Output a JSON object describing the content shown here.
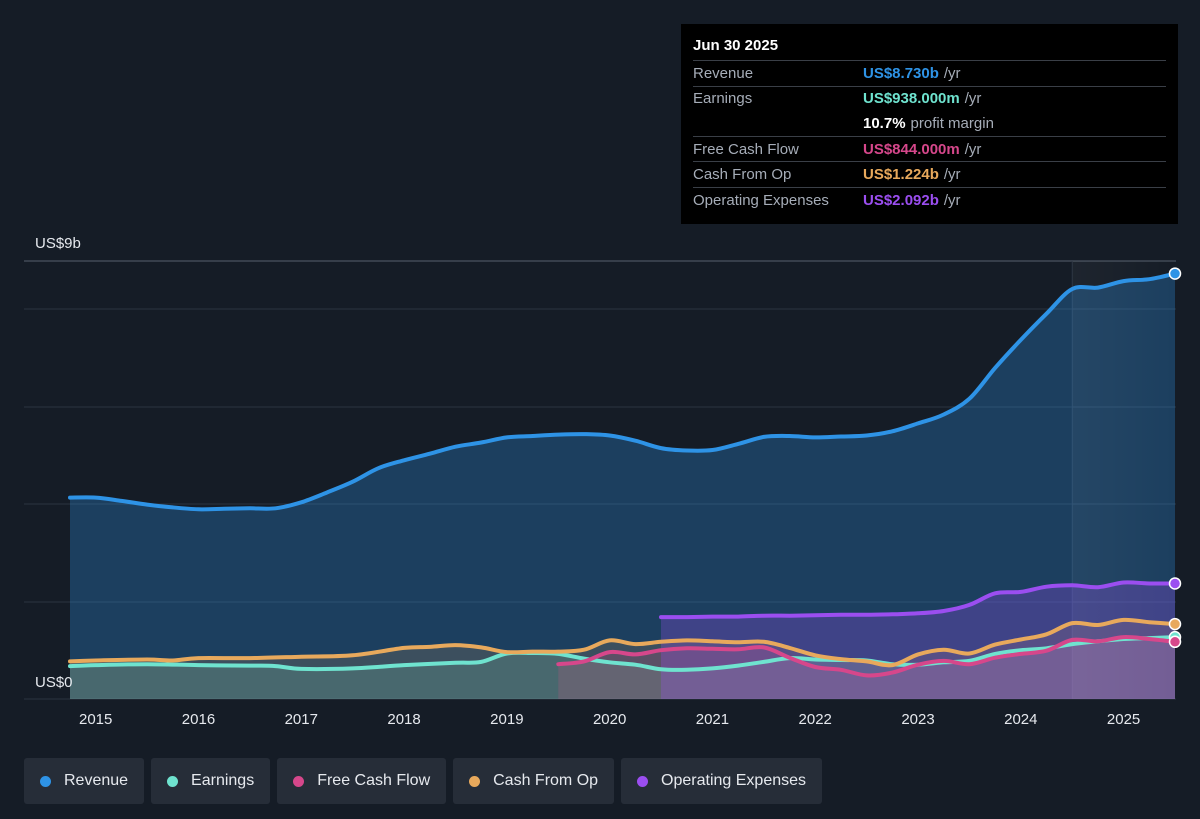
{
  "tooltip": {
    "date": "Jun 30 2025",
    "rows": [
      {
        "label": "Revenue",
        "value": "US$8.730b",
        "unit": "/yr",
        "color": "#2e93e6"
      },
      {
        "label": "Earnings",
        "value": "US$938.000m",
        "unit": "/yr",
        "color": "#6fe3cf"
      },
      {
        "label": "",
        "value": "10.7%",
        "unit": "profit margin",
        "color": "#ffffff"
      },
      {
        "label": "Free Cash Flow",
        "value": "US$844.000m",
        "unit": "/yr",
        "color": "#d6478b"
      },
      {
        "label": "Cash From Op",
        "value": "US$1.224b",
        "unit": "/yr",
        "color": "#e8a95c"
      },
      {
        "label": "Operating Expenses",
        "value": "US$2.092b",
        "unit": "/yr",
        "color": "#9b4ef0"
      }
    ]
  },
  "chart_data": {
    "type": "line",
    "y_top_label": "US$9b",
    "y_zero_label": "US$0",
    "ylim": [
      0,
      9
    ],
    "xlim": [
      2014.75,
      2025.5
    ],
    "x_ticks": [
      "2015",
      "2016",
      "2017",
      "2018",
      "2019",
      "2020",
      "2021",
      "2022",
      "2023",
      "2024",
      "2025"
    ],
    "grid": true,
    "series": [
      {
        "name": "Revenue",
        "color": "#2e93e6",
        "fill": true,
        "x": [
          2014.75,
          2015.0,
          2015.25,
          2015.5,
          2015.75,
          2016.0,
          2016.25,
          2016.5,
          2016.75,
          2017.0,
          2017.25,
          2017.5,
          2017.75,
          2018.0,
          2018.25,
          2018.5,
          2018.75,
          2019.0,
          2019.25,
          2019.5,
          2019.75,
          2020.0,
          2020.25,
          2020.5,
          2020.75,
          2021.0,
          2021.25,
          2021.5,
          2021.75,
          2022.0,
          2022.25,
          2022.5,
          2022.75,
          2023.0,
          2023.25,
          2023.5,
          2023.75,
          2024.0,
          2024.25,
          2024.5,
          2024.75,
          2025.0,
          2025.25,
          2025.5
        ],
        "values": [
          3.93,
          3.93,
          3.86,
          3.78,
          3.72,
          3.68,
          3.69,
          3.7,
          3.7,
          3.83,
          4.04,
          4.27,
          4.56,
          4.73,
          4.87,
          5.02,
          5.11,
          5.22,
          5.25,
          5.28,
          5.29,
          5.26,
          5.15,
          4.99,
          4.94,
          4.95,
          5.08,
          5.23,
          5.25,
          5.22,
          5.24,
          5.26,
          5.35,
          5.52,
          5.71,
          6.05,
          6.71,
          7.31,
          7.87,
          8.4,
          8.43,
          8.57,
          8.61,
          8.73
        ]
      },
      {
        "name": "Earnings",
        "color": "#6fe3cf",
        "fill": true,
        "x": [
          2014.75,
          2015.0,
          2015.5,
          2016.0,
          2016.5,
          2016.75,
          2017.0,
          2017.5,
          2018.0,
          2018.5,
          2018.75,
          2019.0,
          2019.25,
          2019.5,
          2019.75,
          2020.0,
          2020.25,
          2020.5,
          2020.75,
          2021.0,
          2021.25,
          2021.5,
          2021.75,
          2022.0,
          2022.25,
          2022.5,
          2022.75,
          2023.0,
          2023.25,
          2023.5,
          2023.75,
          2024.0,
          2024.25,
          2024.5,
          2024.75,
          2025.0,
          2025.25,
          2025.5
        ],
        "values": [
          0.32,
          0.34,
          0.36,
          0.34,
          0.33,
          0.32,
          0.26,
          0.27,
          0.34,
          0.39,
          0.41,
          0.59,
          0.6,
          0.58,
          0.48,
          0.4,
          0.35,
          0.25,
          0.24,
          0.27,
          0.33,
          0.41,
          0.49,
          0.46,
          0.45,
          0.44,
          0.36,
          0.35,
          0.4,
          0.43,
          0.58,
          0.66,
          0.7,
          0.79,
          0.85,
          0.9,
          0.92,
          0.94
        ]
      },
      {
        "name": "Free Cash Flow",
        "color": "#d6478b",
        "fill": true,
        "x": [
          2019.5,
          2019.75,
          2020.0,
          2020.25,
          2020.5,
          2020.75,
          2021.0,
          2021.25,
          2021.5,
          2021.75,
          2022.0,
          2022.25,
          2022.5,
          2022.75,
          2023.0,
          2023.25,
          2023.5,
          2023.75,
          2024.0,
          2024.25,
          2024.5,
          2024.75,
          2025.0,
          2025.25,
          2025.5
        ],
        "values": [
          0.36,
          0.42,
          0.62,
          0.57,
          0.66,
          0.7,
          0.69,
          0.68,
          0.72,
          0.5,
          0.3,
          0.24,
          0.12,
          0.18,
          0.35,
          0.43,
          0.36,
          0.5,
          0.58,
          0.65,
          0.88,
          0.85,
          0.94,
          0.9,
          0.84
        ]
      },
      {
        "name": "Cash From Op",
        "color": "#e8a95c",
        "fill": true,
        "x": [
          2014.75,
          2015.0,
          2015.5,
          2015.75,
          2016.0,
          2016.5,
          2017.0,
          2017.5,
          2018.0,
          2018.25,
          2018.5,
          2018.75,
          2019.0,
          2019.25,
          2019.5,
          2019.75,
          2020.0,
          2020.25,
          2020.5,
          2020.75,
          2021.0,
          2021.25,
          2021.5,
          2021.75,
          2022.0,
          2022.25,
          2022.5,
          2022.75,
          2023.0,
          2023.25,
          2023.5,
          2023.75,
          2024.0,
          2024.25,
          2024.5,
          2024.75,
          2025.0,
          2025.25,
          2025.5
        ],
        "values": [
          0.42,
          0.44,
          0.46,
          0.44,
          0.49,
          0.49,
          0.52,
          0.55,
          0.71,
          0.73,
          0.77,
          0.72,
          0.62,
          0.63,
          0.63,
          0.67,
          0.87,
          0.79,
          0.84,
          0.87,
          0.85,
          0.83,
          0.84,
          0.71,
          0.55,
          0.47,
          0.42,
          0.34,
          0.57,
          0.67,
          0.59,
          0.78,
          0.89,
          1.0,
          1.24,
          1.2,
          1.31,
          1.26,
          1.22
        ]
      },
      {
        "name": "Operating Expenses",
        "color": "#9b4ef0",
        "fill": true,
        "x": [
          2020.5,
          2020.75,
          2021.0,
          2021.25,
          2021.5,
          2021.75,
          2022.0,
          2022.25,
          2022.5,
          2022.75,
          2023.0,
          2023.25,
          2023.5,
          2023.75,
          2024.0,
          2024.25,
          2024.5,
          2024.75,
          2025.0,
          2025.25,
          2025.5
        ],
        "values": [
          1.37,
          1.37,
          1.38,
          1.38,
          1.4,
          1.4,
          1.41,
          1.42,
          1.42,
          1.43,
          1.45,
          1.5,
          1.63,
          1.88,
          1.91,
          2.02,
          2.05,
          2.01,
          2.11,
          2.09,
          2.09
        ]
      }
    ]
  },
  "legend": [
    {
      "label": "Revenue",
      "color": "#2e93e6"
    },
    {
      "label": "Earnings",
      "color": "#6fe3cf"
    },
    {
      "label": "Free Cash Flow",
      "color": "#d6478b"
    },
    {
      "label": "Cash From Op",
      "color": "#e8a95c"
    },
    {
      "label": "Operating Expenses",
      "color": "#9b4ef0"
    }
  ]
}
